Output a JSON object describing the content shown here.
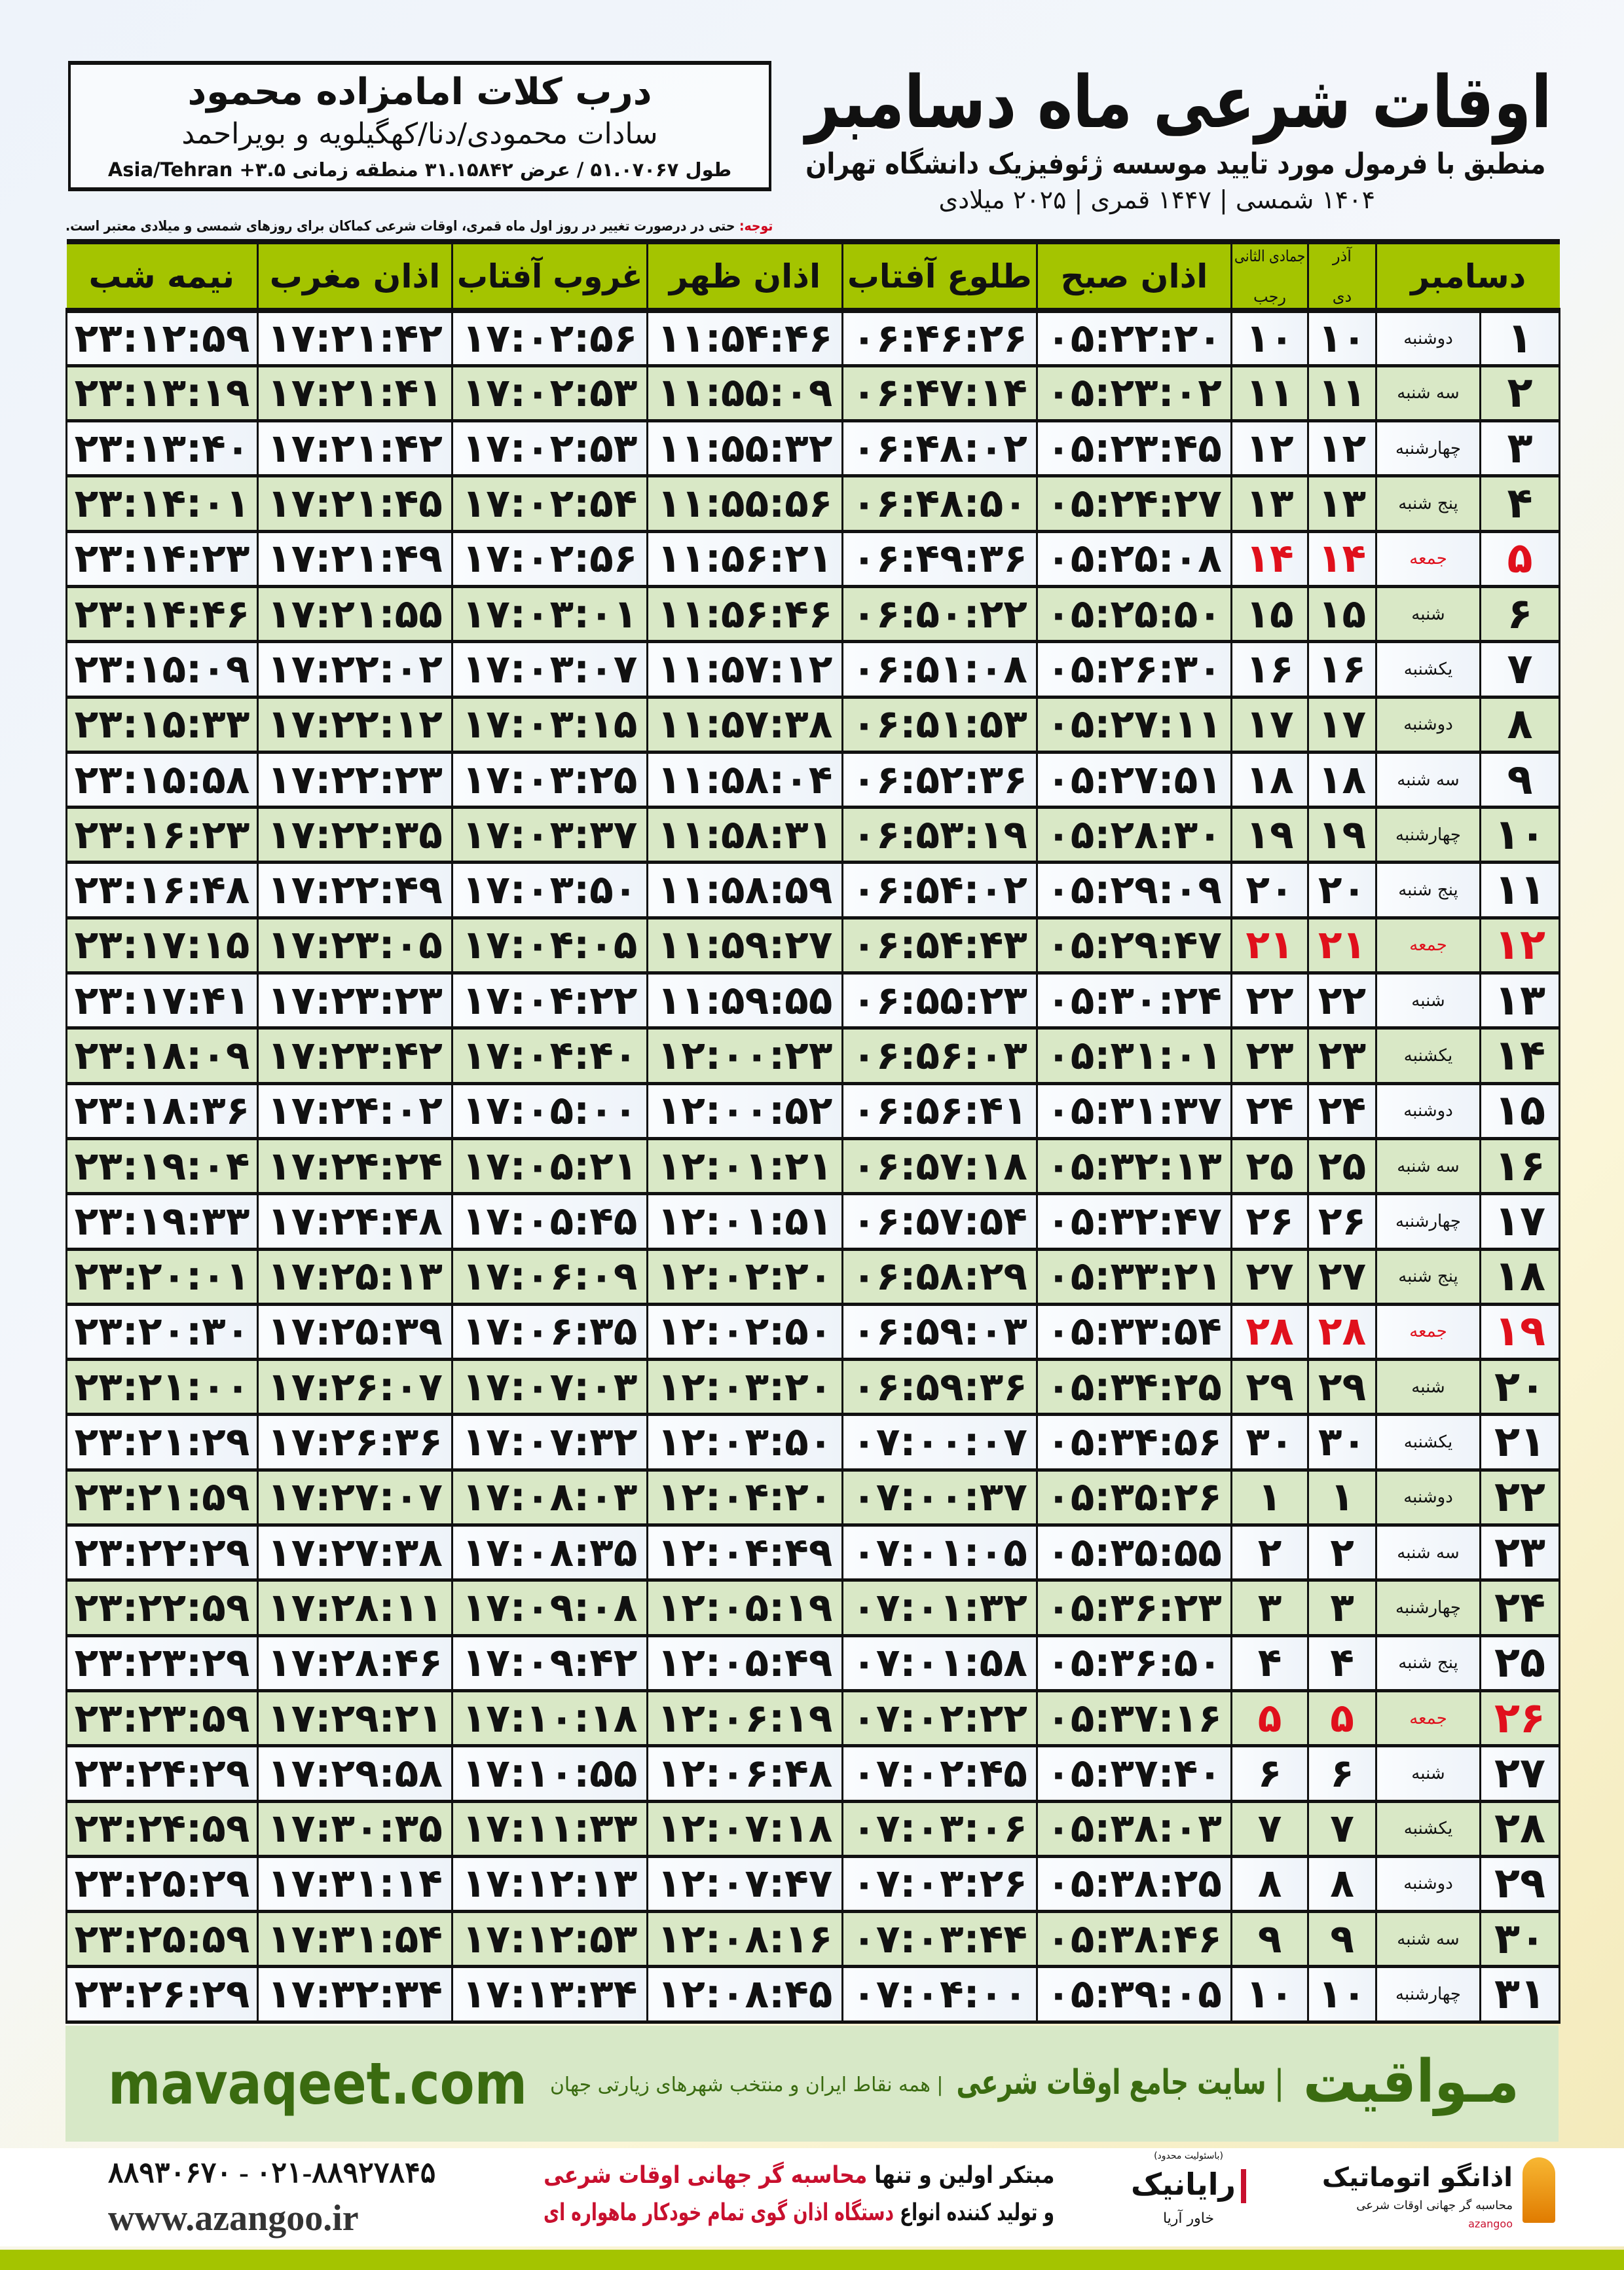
{
  "location": {
    "name": "درب کلات امامزاده محمود",
    "province": "سادات محمودی/دنا/کهگیلویه و بویراحمد",
    "coords": "طول ۵۱.۰۷۰۶۷ / عرض ۳۱.۱۵۸۴۲ منطقه زمانی ۳.۵+ Asia/Tehran"
  },
  "title": {
    "main": "اوقات شرعی ماه دسامبر",
    "subtitle": "منطبق با فرمول مورد تایید موسسه ژئوفیزیک دانشگاه تهران",
    "year": "۱۴۰۴ شمسی | ۱۴۴۷ قمری | ۲۰۲۵ میلادی"
  },
  "note": {
    "label": "توجه:",
    "text": " حتی در درصورت تغییر در روز اول ماه قمری، اوقات شرعی کماکان برای روزهای شمسی و میلادی معتبر است."
  },
  "table": {
    "headers": {
      "month": "دسامبر",
      "shamsi_top": "آذر",
      "shamsi_bottom": "دی",
      "qamari_top": "جمادی الثانی",
      "qamari_bottom": "رجب",
      "fajr": "اذان صبح",
      "sunrise": "طلوع آفتاب",
      "dhuhr": "اذان ظهر",
      "sunset": "غروب آفتاب",
      "maghrib": "اذان مغرب",
      "midnight": "نیمه شب"
    },
    "highlight_color": "#e0101c",
    "rows": [
      [
        "۱",
        "دوشنبه",
        "۱۰",
        "۱۰",
        "۰۵:۲۲:۲۰",
        "۰۶:۴۶:۲۶",
        "۱۱:۵۴:۴۶",
        "۱۷:۰۲:۵۶",
        "۱۷:۲۱:۴۲",
        "۲۳:۱۲:۵۹"
      ],
      [
        "۲",
        "سه شنبه",
        "۱۱",
        "۱۱",
        "۰۵:۲۳:۰۲",
        "۰۶:۴۷:۱۴",
        "۱۱:۵۵:۰۹",
        "۱۷:۰۲:۵۳",
        "۱۷:۲۱:۴۱",
        "۲۳:۱۳:۱۹"
      ],
      [
        "۳",
        "چهارشنبه",
        "۱۲",
        "۱۲",
        "۰۵:۲۳:۴۵",
        "۰۶:۴۸:۰۲",
        "۱۱:۵۵:۳۲",
        "۱۷:۰۲:۵۳",
        "۱۷:۲۱:۴۲",
        "۲۳:۱۳:۴۰"
      ],
      [
        "۴",
        "پنج شنبه",
        "۱۳",
        "۱۳",
        "۰۵:۲۴:۲۷",
        "۰۶:۴۸:۵۰",
        "۱۱:۵۵:۵۶",
        "۱۷:۰۲:۵۴",
        "۱۷:۲۱:۴۵",
        "۲۳:۱۴:۰۱"
      ],
      [
        "۵",
        "جمعه",
        "۱۴",
        "۱۴",
        "۰۵:۲۵:۰۸",
        "۰۶:۴۹:۳۶",
        "۱۱:۵۶:۲۱",
        "۱۷:۰۲:۵۶",
        "۱۷:۲۱:۴۹",
        "۲۳:۱۴:۲۳"
      ],
      [
        "۶",
        "شنبه",
        "۱۵",
        "۱۵",
        "۰۵:۲۵:۵۰",
        "۰۶:۵۰:۲۲",
        "۱۱:۵۶:۴۶",
        "۱۷:۰۳:۰۱",
        "۱۷:۲۱:۵۵",
        "۲۳:۱۴:۴۶"
      ],
      [
        "۷",
        "یکشنبه",
        "۱۶",
        "۱۶",
        "۰۵:۲۶:۳۰",
        "۰۶:۵۱:۰۸",
        "۱۱:۵۷:۱۲",
        "۱۷:۰۳:۰۷",
        "۱۷:۲۲:۰۲",
        "۲۳:۱۵:۰۹"
      ],
      [
        "۸",
        "دوشنبه",
        "۱۷",
        "۱۷",
        "۰۵:۲۷:۱۱",
        "۰۶:۵۱:۵۳",
        "۱۱:۵۷:۳۸",
        "۱۷:۰۳:۱۵",
        "۱۷:۲۲:۱۲",
        "۲۳:۱۵:۳۳"
      ],
      [
        "۹",
        "سه شنبه",
        "۱۸",
        "۱۸",
        "۰۵:۲۷:۵۱",
        "۰۶:۵۲:۳۶",
        "۱۱:۵۸:۰۴",
        "۱۷:۰۳:۲۵",
        "۱۷:۲۲:۲۳",
        "۲۳:۱۵:۵۸"
      ],
      [
        "۱۰",
        "چهارشنبه",
        "۱۹",
        "۱۹",
        "۰۵:۲۸:۳۰",
        "۰۶:۵۳:۱۹",
        "۱۱:۵۸:۳۱",
        "۱۷:۰۳:۳۷",
        "۱۷:۲۲:۳۵",
        "۲۳:۱۶:۲۳"
      ],
      [
        "۱۱",
        "پنج شنبه",
        "۲۰",
        "۲۰",
        "۰۵:۲۹:۰۹",
        "۰۶:۵۴:۰۲",
        "۱۱:۵۸:۵۹",
        "۱۷:۰۳:۵۰",
        "۱۷:۲۲:۴۹",
        "۲۳:۱۶:۴۸"
      ],
      [
        "۱۲",
        "جمعه",
        "۲۱",
        "۲۱",
        "۰۵:۲۹:۴۷",
        "۰۶:۵۴:۴۳",
        "۱۱:۵۹:۲۷",
        "۱۷:۰۴:۰۵",
        "۱۷:۲۳:۰۵",
        "۲۳:۱۷:۱۵"
      ],
      [
        "۱۳",
        "شنبه",
        "۲۲",
        "۲۲",
        "۰۵:۳۰:۲۴",
        "۰۶:۵۵:۲۳",
        "۱۱:۵۹:۵۵",
        "۱۷:۰۴:۲۲",
        "۱۷:۲۳:۲۳",
        "۲۳:۱۷:۴۱"
      ],
      [
        "۱۴",
        "یکشنبه",
        "۲۳",
        "۲۳",
        "۰۵:۳۱:۰۱",
        "۰۶:۵۶:۰۳",
        "۱۲:۰۰:۲۳",
        "۱۷:۰۴:۴۰",
        "۱۷:۲۳:۴۲",
        "۲۳:۱۸:۰۹"
      ],
      [
        "۱۵",
        "دوشنبه",
        "۲۴",
        "۲۴",
        "۰۵:۳۱:۳۷",
        "۰۶:۵۶:۴۱",
        "۱۲:۰۰:۵۲",
        "۱۷:۰۵:۰۰",
        "۱۷:۲۴:۰۲",
        "۲۳:۱۸:۳۶"
      ],
      [
        "۱۶",
        "سه شنبه",
        "۲۵",
        "۲۵",
        "۰۵:۳۲:۱۳",
        "۰۶:۵۷:۱۸",
        "۱۲:۰۱:۲۱",
        "۱۷:۰۵:۲۱",
        "۱۷:۲۴:۲۴",
        "۲۳:۱۹:۰۴"
      ],
      [
        "۱۷",
        "چهارشنبه",
        "۲۶",
        "۲۶",
        "۰۵:۳۲:۴۷",
        "۰۶:۵۷:۵۴",
        "۱۲:۰۱:۵۱",
        "۱۷:۰۵:۴۵",
        "۱۷:۲۴:۴۸",
        "۲۳:۱۹:۳۳"
      ],
      [
        "۱۸",
        "پنج شنبه",
        "۲۷",
        "۲۷",
        "۰۵:۳۳:۲۱",
        "۰۶:۵۸:۲۹",
        "۱۲:۰۲:۲۰",
        "۱۷:۰۶:۰۹",
        "۱۷:۲۵:۱۳",
        "۲۳:۲۰:۰۱"
      ],
      [
        "۱۹",
        "جمعه",
        "۲۸",
        "۲۸",
        "۰۵:۳۳:۵۴",
        "۰۶:۵۹:۰۳",
        "۱۲:۰۲:۵۰",
        "۱۷:۰۶:۳۵",
        "۱۷:۲۵:۳۹",
        "۲۳:۲۰:۳۰"
      ],
      [
        "۲۰",
        "شنبه",
        "۲۹",
        "۲۹",
        "۰۵:۳۴:۲۵",
        "۰۶:۵۹:۳۶",
        "۱۲:۰۳:۲۰",
        "۱۷:۰۷:۰۳",
        "۱۷:۲۶:۰۷",
        "۲۳:۲۱:۰۰"
      ],
      [
        "۲۱",
        "یکشنبه",
        "۳۰",
        "۳۰",
        "۰۵:۳۴:۵۶",
        "۰۷:۰۰:۰۷",
        "۱۲:۰۳:۵۰",
        "۱۷:۰۷:۳۲",
        "۱۷:۲۶:۳۶",
        "۲۳:۲۱:۲۹"
      ],
      [
        "۲۲",
        "دوشنبه",
        "۱",
        "۱",
        "۰۵:۳۵:۲۶",
        "۰۷:۰۰:۳۷",
        "۱۲:۰۴:۲۰",
        "۱۷:۰۸:۰۳",
        "۱۷:۲۷:۰۷",
        "۲۳:۲۱:۵۹"
      ],
      [
        "۲۳",
        "سه شنبه",
        "۲",
        "۲",
        "۰۵:۳۵:۵۵",
        "۰۷:۰۱:۰۵",
        "۱۲:۰۴:۴۹",
        "۱۷:۰۸:۳۵",
        "۱۷:۲۷:۳۸",
        "۲۳:۲۲:۲۹"
      ],
      [
        "۲۴",
        "چهارشنبه",
        "۳",
        "۳",
        "۰۵:۳۶:۲۳",
        "۰۷:۰۱:۳۲",
        "۱۲:۰۵:۱۹",
        "۱۷:۰۹:۰۸",
        "۱۷:۲۸:۱۱",
        "۲۳:۲۲:۵۹"
      ],
      [
        "۲۵",
        "پنج شنبه",
        "۴",
        "۴",
        "۰۵:۳۶:۵۰",
        "۰۷:۰۱:۵۸",
        "۱۲:۰۵:۴۹",
        "۱۷:۰۹:۴۲",
        "۱۷:۲۸:۴۶",
        "۲۳:۲۳:۲۹"
      ],
      [
        "۲۶",
        "جمعه",
        "۵",
        "۵",
        "۰۵:۳۷:۱۶",
        "۰۷:۰۲:۲۲",
        "۱۲:۰۶:۱۹",
        "۱۷:۱۰:۱۸",
        "۱۷:۲۹:۲۱",
        "۲۳:۲۳:۵۹"
      ],
      [
        "۲۷",
        "شنبه",
        "۶",
        "۶",
        "۰۵:۳۷:۴۰",
        "۰۷:۰۲:۴۵",
        "۱۲:۰۶:۴۸",
        "۱۷:۱۰:۵۵",
        "۱۷:۲۹:۵۸",
        "۲۳:۲۴:۲۹"
      ],
      [
        "۲۸",
        "یکشنبه",
        "۷",
        "۷",
        "۰۵:۳۸:۰۳",
        "۰۷:۰۳:۰۶",
        "۱۲:۰۷:۱۸",
        "۱۷:۱۱:۳۳",
        "۱۷:۳۰:۳۵",
        "۲۳:۲۴:۵۹"
      ],
      [
        "۲۹",
        "دوشنبه",
        "۸",
        "۸",
        "۰۵:۳۸:۲۵",
        "۰۷:۰۳:۲۶",
        "۱۲:۰۷:۴۷",
        "۱۷:۱۲:۱۳",
        "۱۷:۳۱:۱۴",
        "۲۳:۲۵:۲۹"
      ],
      [
        "۳۰",
        "سه شنبه",
        "۹",
        "۹",
        "۰۵:۳۸:۴۶",
        "۰۷:۰۳:۴۴",
        "۱۲:۰۸:۱۶",
        "۱۷:۱۲:۵۳",
        "۱۷:۳۱:۵۴",
        "۲۳:۲۵:۵۹"
      ],
      [
        "۳۱",
        "چهارشنبه",
        "۱۰",
        "۱۰",
        "۰۵:۳۹:۰۵",
        "۰۷:۰۴:۰۰",
        "۱۲:۰۸:۴۵",
        "۱۷:۱۳:۳۴",
        "۱۷:۳۲:۳۴",
        "۲۳:۲۶:۲۹"
      ]
    ]
  },
  "banner": {
    "brand": "مـواقیت",
    "tagline": "| سایت جامع اوقات شرعی",
    "sub": "| همه نقاط ایران و منتخب شهرهای زیارتی جهان",
    "site": "mavaqeet.com",
    "color": "#3a6b10"
  },
  "footer": {
    "phone": "۰۲۱-۸۸۹۲۷۸۴۵ - ۸۸۹۳۰۶۷۰",
    "website": "www.azangoo.ir",
    "slogan1_a": "مبتکر اولین و تنها ",
    "slogan1_b": "محاسبه گر جهانی اوقات شرعی",
    "slogan2_a": "و تولید کننده انواع ",
    "slogan2_b": "دستگاه اذان گوی تمام خودکار ماهواره ای",
    "logo1": "رایانیک",
    "logo1_small": "(باسئولیت محدود)",
    "logo1_sub": "خاور آریا",
    "logo2": "اذانگو اتوماتیک",
    "logo2_sub": "محاسبه گر جهانی اوقات شرعی",
    "logo2_latin": "azangoo"
  }
}
